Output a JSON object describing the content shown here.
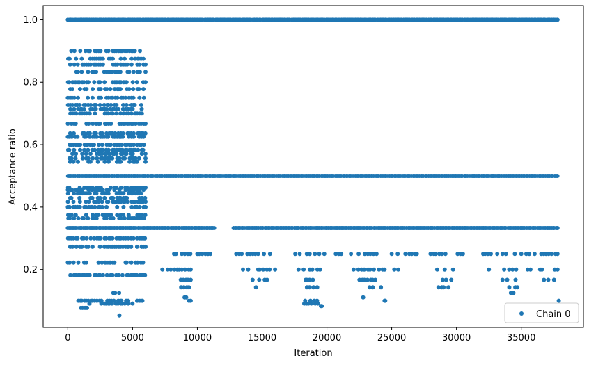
{
  "chart_data": {
    "type": "scatter",
    "xlabel": "Iteration",
    "ylabel": "Acceptance ratio",
    "xlim": [
      -1900,
      39800
    ],
    "ylim": [
      0.0145,
      1.0455
    ],
    "xticks": [
      0,
      5000,
      10000,
      15000,
      20000,
      25000,
      30000,
      35000
    ],
    "xtick_labels": [
      "0",
      "5000",
      "10000",
      "15000",
      "20000",
      "25000",
      "30000",
      "35000"
    ],
    "yticks": [
      0.2,
      0.4,
      0.6,
      0.8,
      1.0
    ],
    "ytick_labels": [
      "0.2",
      "0.4",
      "0.6",
      "0.8",
      "1.0"
    ],
    "grid": false,
    "legend": {
      "placement": "lower-right",
      "entries": [
        "Chain 0"
      ]
    },
    "series": [
      {
        "name": "Chain 0",
        "color": "#1f77b4",
        "marker": "circle",
        "points_description": "Each value lists the x-ranges (in iterations) over which points occur at that acceptance ratio.",
        "levels": [
          {
            "y": 1.0,
            "ranges": [
              [
                0,
                37800
              ]
            ]
          },
          {
            "y": 0.9,
            "ranges": [
              [
                0,
                6000
              ]
            ]
          },
          {
            "y": 0.875,
            "ranges": [
              [
                0,
                6000
              ]
            ]
          },
          {
            "y": 0.857,
            "ranges": [
              [
                0,
                6000
              ]
            ]
          },
          {
            "y": 0.833,
            "ranges": [
              [
                0,
                6000
              ]
            ]
          },
          {
            "y": 0.8,
            "ranges": [
              [
                0,
                6000
              ]
            ]
          },
          {
            "y": 0.778,
            "ranges": [
              [
                0,
                6000
              ]
            ]
          },
          {
            "y": 0.75,
            "ranges": [
              [
                0,
                6000
              ]
            ]
          },
          {
            "y": 0.727,
            "ranges": [
              [
                0,
                6000
              ]
            ]
          },
          {
            "y": 0.714,
            "ranges": [
              [
                0,
                6000
              ]
            ]
          },
          {
            "y": 0.7,
            "ranges": [
              [
                0,
                6000
              ]
            ]
          },
          {
            "y": 0.667,
            "ranges": [
              [
                0,
                6000
              ]
            ]
          },
          {
            "y": 0.636,
            "ranges": [
              [
                0,
                6000
              ]
            ]
          },
          {
            "y": 0.625,
            "ranges": [
              [
                0,
                6000
              ]
            ]
          },
          {
            "y": 0.6,
            "ranges": [
              [
                0,
                6000
              ]
            ]
          },
          {
            "y": 0.583,
            "ranges": [
              [
                0,
                6000
              ]
            ]
          },
          {
            "y": 0.571,
            "ranges": [
              [
                0,
                6000
              ]
            ]
          },
          {
            "y": 0.556,
            "ranges": [
              [
                0,
                6000
              ]
            ]
          },
          {
            "y": 0.545,
            "ranges": [
              [
                0,
                6000
              ]
            ]
          },
          {
            "y": 0.5,
            "ranges": [
              [
                0,
                37800
              ]
            ]
          },
          {
            "y": 0.462,
            "ranges": [
              [
                0,
                6000
              ]
            ]
          },
          {
            "y": 0.455,
            "ranges": [
              [
                0,
                6000
              ]
            ]
          },
          {
            "y": 0.444,
            "ranges": [
              [
                0,
                6000
              ]
            ]
          },
          {
            "y": 0.429,
            "ranges": [
              [
                0,
                6000
              ]
            ]
          },
          {
            "y": 0.417,
            "ranges": [
              [
                0,
                6000
              ]
            ]
          },
          {
            "y": 0.4,
            "ranges": [
              [
                0,
                6000
              ]
            ]
          },
          {
            "y": 0.375,
            "ranges": [
              [
                0,
                6000
              ]
            ]
          },
          {
            "y": 0.364,
            "ranges": [
              [
                0,
                6000
              ]
            ]
          },
          {
            "y": 0.333,
            "ranges": [
              [
                0,
                11300
              ],
              [
                12800,
                37800
              ]
            ]
          },
          {
            "y": 0.3,
            "ranges": [
              [
                0,
                6000
              ]
            ]
          },
          {
            "y": 0.273,
            "ranges": [
              [
                0,
                6000
              ]
            ]
          },
          {
            "y": 0.25,
            "ranges": [
              [
                6800,
                9500
              ],
              [
                10000,
                11000
              ],
              [
                13000,
                16000
              ],
              [
                17500,
                19800
              ],
              [
                20500,
                24500
              ],
              [
                25000,
                27000
              ],
              [
                28000,
                30500
              ],
              [
                32000,
                34500
              ],
              [
                35000,
                37800
              ]
            ]
          },
          {
            "y": 0.222,
            "ranges": [
              [
                0,
                6000
              ]
            ]
          },
          {
            "y": 0.2,
            "ranges": [
              [
                7300,
                9500
              ],
              [
                13300,
                16000
              ],
              [
                17800,
                19500
              ],
              [
                22000,
                24500
              ],
              [
                25200,
                25700
              ],
              [
                28300,
                29800
              ],
              [
                32500,
                34800
              ],
              [
                35500,
                37800
              ]
            ]
          },
          {
            "y": 0.182,
            "ranges": [
              [
                0,
                6000
              ]
            ]
          },
          {
            "y": 0.167,
            "ranges": [
              [
                8500,
                9500
              ],
              [
                13700,
                15800
              ],
              [
                18300,
                19300
              ],
              [
                22500,
                24200
              ],
              [
                28800,
                29600
              ],
              [
                33300,
                34800
              ],
              [
                36500,
                37800
              ]
            ]
          },
          {
            "y": 0.143,
            "ranges": [
              [
                8700,
                9400
              ],
              [
                13900,
                14700
              ],
              [
                18400,
                19400
              ],
              [
                23000,
                24200
              ],
              [
                28600,
                29400
              ],
              [
                33800,
                34700
              ]
            ]
          },
          {
            "y": 0.125,
            "ranges": [
              [
                3500,
                4000
              ],
              [
                34200,
                34400
              ]
            ]
          },
          {
            "y": 0.111,
            "ranges": [
              [
                9000,
                9200
              ],
              [
                22800,
                22900
              ],
              [
                29500,
                29600
              ]
            ]
          },
          {
            "y": 0.1,
            "ranges": [
              [
                800,
                5800
              ],
              [
                9300,
                9500
              ],
              [
                18300,
                19500
              ],
              [
                24400,
                24500
              ],
              [
                34400,
                34500
              ],
              [
                37800,
                37900
              ]
            ]
          },
          {
            "y": 0.091,
            "ranges": [
              [
                1500,
                5000
              ],
              [
                18200,
                19300
              ]
            ]
          },
          {
            "y": 0.083,
            "ranges": [
              [
                19500,
                19600
              ]
            ]
          },
          {
            "y": 0.077,
            "ranges": [
              [
                1000,
                1500
              ]
            ]
          },
          {
            "y": 0.053,
            "ranges": [
              [
                3900,
                4000
              ]
            ]
          }
        ]
      }
    ]
  }
}
